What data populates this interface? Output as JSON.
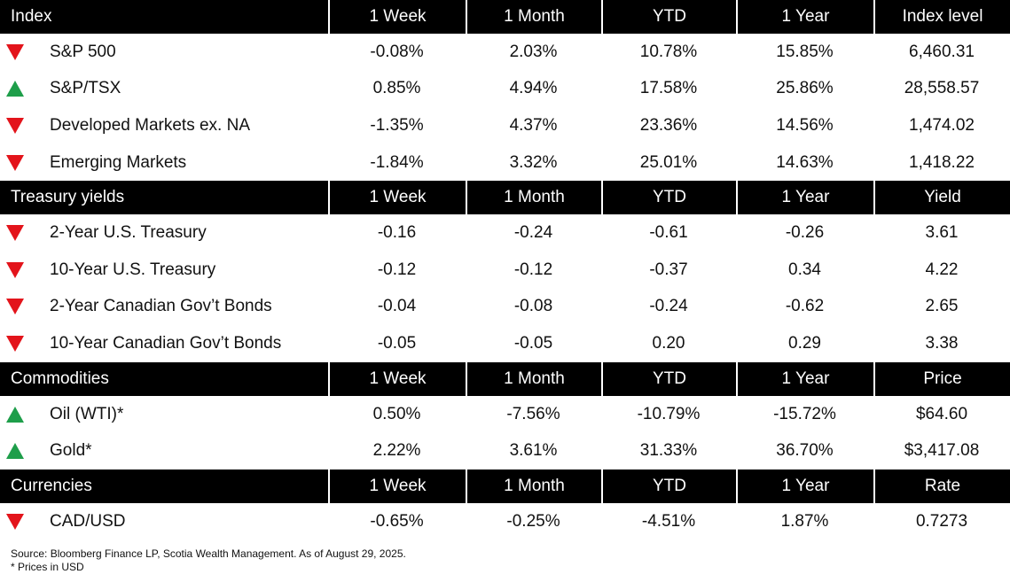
{
  "sections": [
    {
      "header": [
        "Index",
        "1 Week",
        "1 Month",
        "YTD",
        "1 Year",
        "Index level"
      ],
      "rows": [
        {
          "trend": "down",
          "cells": [
            "S&P 500",
            "-0.08%",
            "2.03%",
            "10.78%",
            "15.85%",
            "6,460.31"
          ]
        },
        {
          "trend": "up",
          "cells": [
            "S&P/TSX",
            "0.85%",
            "4.94%",
            "17.58%",
            "25.86%",
            "28,558.57"
          ]
        },
        {
          "trend": "down",
          "cells": [
            "Developed Markets ex. NA",
            "-1.35%",
            "4.37%",
            "23.36%",
            "14.56%",
            "1,474.02"
          ]
        },
        {
          "trend": "down",
          "cells": [
            "Emerging Markets",
            "-1.84%",
            "3.32%",
            "25.01%",
            "14.63%",
            "1,418.22"
          ]
        }
      ]
    },
    {
      "header": [
        "Treasury yields",
        "1 Week",
        "1 Month",
        "YTD",
        "1 Year",
        "Yield"
      ],
      "rows": [
        {
          "trend": "down",
          "cells": [
            "2-Year U.S. Treasury",
            "-0.16",
            "-0.24",
            "-0.61",
            "-0.26",
            "3.61"
          ]
        },
        {
          "trend": "down",
          "cells": [
            "10-Year U.S. Treasury",
            "-0.12",
            "-0.12",
            "-0.37",
            "0.34",
            "4.22"
          ]
        },
        {
          "trend": "down",
          "cells": [
            "2-Year Canadian Gov’t Bonds",
            "-0.04",
            "-0.08",
            "-0.24",
            "-0.62",
            "2.65"
          ]
        },
        {
          "trend": "down",
          "cells": [
            "10-Year Canadian Gov’t Bonds",
            "-0.05",
            "-0.05",
            "0.20",
            "0.29",
            "3.38"
          ]
        }
      ]
    },
    {
      "header": [
        "Commodities",
        "1 Week",
        "1 Month",
        "YTD",
        "1 Year",
        "Price"
      ],
      "rows": [
        {
          "trend": "up",
          "cells": [
            "Oil (WTI)*",
            "0.50%",
            "-7.56%",
            "-10.79%",
            "-15.72%",
            "$64.60"
          ]
        },
        {
          "trend": "up",
          "cells": [
            "Gold*",
            "2.22%",
            "3.61%",
            "31.33%",
            "36.70%",
            "$3,417.08"
          ]
        }
      ]
    },
    {
      "header": [
        "Currencies",
        "1 Week",
        "1 Month",
        "YTD",
        "1 Year",
        "Rate"
      ],
      "rows": [
        {
          "trend": "down",
          "cells": [
            "CAD/USD",
            "-0.65%",
            "-0.25%",
            "-4.51%",
            "1.87%",
            "0.7273"
          ]
        }
      ]
    }
  ],
  "footer": [
    "Source: Bloomberg Finance LP, Scotia Wealth Management. As of August 29, 2025.",
    "* Prices in USD"
  ]
}
